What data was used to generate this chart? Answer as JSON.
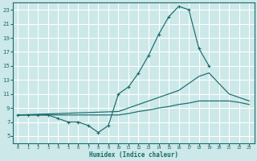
{
  "xlabel": "Humidex (Indice chaleur)",
  "bg_color": "#cce8e8",
  "line_color": "#1a6b6b",
  "grid_color": "#ffffff",
  "xlim": [
    -0.5,
    23.5
  ],
  "ylim": [
    4,
    24
  ],
  "yticks": [
    5,
    7,
    9,
    11,
    13,
    15,
    17,
    19,
    21,
    23
  ],
  "xticks": [
    0,
    1,
    2,
    3,
    4,
    5,
    6,
    7,
    8,
    9,
    10,
    11,
    12,
    13,
    14,
    15,
    16,
    17,
    18,
    19,
    20,
    21,
    22,
    23
  ],
  "line1_x": [
    0,
    1,
    2,
    3,
    4,
    5,
    6,
    7,
    8,
    9,
    10,
    11,
    12,
    13,
    14,
    15,
    16,
    17,
    18,
    19,
    20,
    21,
    22,
    23
  ],
  "line1_y": [
    8,
    8,
    8,
    8,
    7.5,
    7,
    7,
    6.5,
    5.5,
    6.5,
    11.0,
    12.0,
    14.0,
    16.5,
    19.5,
    22.0,
    23.5,
    23.0,
    17.5,
    15.0,
    null,
    null,
    null,
    null
  ],
  "line2_x": [
    0,
    10,
    11,
    12,
    13,
    14,
    15,
    16,
    17,
    18,
    19,
    20,
    21,
    22,
    23
  ],
  "line2_y": [
    8,
    8.5,
    9.0,
    9.5,
    10.0,
    10.5,
    11.0,
    11.5,
    12.5,
    13.5,
    14.0,
    12.5,
    11.0,
    10.5,
    10.0
  ],
  "line3_x": [
    0,
    10,
    11,
    12,
    13,
    14,
    15,
    16,
    17,
    18,
    19,
    20,
    21,
    22,
    23
  ],
  "line3_y": [
    8,
    8.0,
    8.2,
    8.5,
    8.7,
    9.0,
    9.2,
    9.5,
    9.7,
    10.0,
    10.0,
    10.0,
    10.0,
    9.8,
    9.5
  ]
}
